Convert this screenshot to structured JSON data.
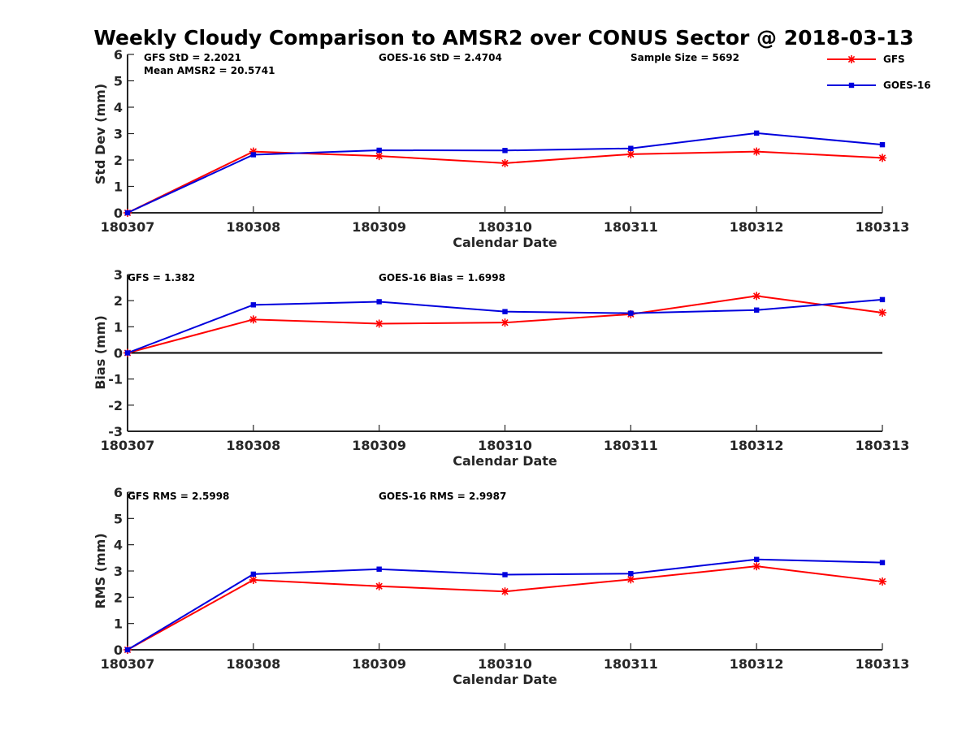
{
  "chart_data": {
    "type": "line",
    "title": "Weekly Cloudy Comparison to AMSR2 over CONUS Sector @ 2018-03-13",
    "categories": [
      "180307",
      "180308",
      "180309",
      "180310",
      "180311",
      "180312",
      "180313"
    ],
    "legend": {
      "placement": "top-right",
      "entries": [
        {
          "name": "GFS",
          "color": "#ff0000",
          "marker": "asterisk"
        },
        {
          "name": "GOES-16",
          "color": "#0000dd",
          "marker": "square"
        }
      ]
    },
    "panels": [
      {
        "xlabel": "Calendar Date",
        "ylabel": "Std Dev (mm)",
        "ylim": [
          0,
          6
        ],
        "yticks": [
          0,
          1,
          2,
          3,
          4,
          5,
          6
        ],
        "zero_line": false,
        "annotations": [
          "GFS StD = 2.2021",
          "Mean AMSR2 = 20.5741",
          "GOES-16 StD = 2.4704",
          "Sample Size = 5692"
        ],
        "series": [
          {
            "name": "GFS",
            "values": [
              0.0,
              2.32,
              2.15,
              1.88,
              2.22,
              2.32,
              2.08
            ]
          },
          {
            "name": "GOES-16",
            "values": [
              0.0,
              2.2,
              2.37,
              2.36,
              2.44,
              3.02,
              2.58
            ]
          }
        ]
      },
      {
        "xlabel": "Calendar Date",
        "ylabel": "Bias (mm)",
        "ylim": [
          -3,
          3
        ],
        "yticks": [
          -3,
          -2,
          -1,
          0,
          1,
          2,
          3
        ],
        "zero_line": true,
        "annotations": [
          "GFS = 1.382",
          "GOES-16 Bias  = 1.6998"
        ],
        "series": [
          {
            "name": "GFS",
            "values": [
              0.0,
              1.28,
              1.12,
              1.16,
              1.48,
              2.18,
              1.54
            ]
          },
          {
            "name": "GOES-16",
            "values": [
              0.0,
              1.84,
              1.96,
              1.58,
              1.52,
              1.64,
              2.04
            ]
          }
        ]
      },
      {
        "xlabel": "Calendar Date",
        "ylabel": "RMS (mm)",
        "ylim": [
          0,
          6
        ],
        "yticks": [
          0,
          1,
          2,
          3,
          4,
          5,
          6
        ],
        "zero_line": false,
        "annotations": [
          "GFS RMS = 2.5998",
          "GOES-16 RMS = 2.9987"
        ],
        "series": [
          {
            "name": "GFS",
            "values": [
              0.0,
              2.66,
              2.42,
              2.22,
              2.68,
              3.18,
              2.6
            ]
          },
          {
            "name": "GOES-16",
            "values": [
              0.0,
              2.88,
              3.07,
              2.86,
              2.9,
              3.44,
              3.32
            ]
          }
        ]
      }
    ]
  }
}
